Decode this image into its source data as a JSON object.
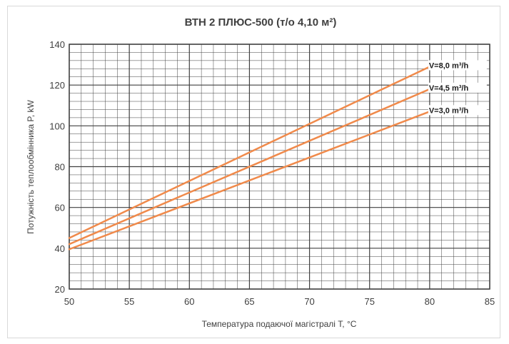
{
  "chart_data": {
    "type": "line",
    "title": "ВТН 2 ПЛЮС-500 (т/о 4,10 м²)",
    "xlabel": "Температура подаючої магістралі T, °C",
    "ylabel": "Потужність теплообмінника P, kW",
    "xlim": [
      50,
      85
    ],
    "ylim": [
      20,
      140
    ],
    "x_ticks": [
      50,
      55,
      60,
      65,
      70,
      75,
      80,
      85
    ],
    "y_ticks": [
      20,
      40,
      60,
      80,
      100,
      120,
      140
    ],
    "x_tick_labels": [
      "50",
      "55",
      "60",
      "65",
      "70",
      "75",
      "80",
      "85"
    ],
    "y_tick_labels": [
      "20",
      "40",
      "60",
      "80",
      "100",
      "120",
      "140"
    ],
    "grid": true,
    "series": [
      {
        "name": "V=8,0 m³/h",
        "x": [
          50,
          80
        ],
        "y": [
          45,
          129
        ]
      },
      {
        "name": "V=4,5 m³/h",
        "x": [
          50,
          80
        ],
        "y": [
          42,
          118
        ]
      },
      {
        "name": "V=3,0 m³/h",
        "x": [
          50,
          80
        ],
        "y": [
          39.5,
          107
        ]
      }
    ],
    "colors": {
      "line": "#f08a4b",
      "grid": "#404040",
      "text": "#404040"
    }
  }
}
